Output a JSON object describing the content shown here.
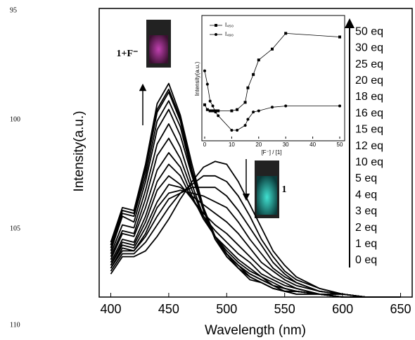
{
  "line_numbers": [
    "95",
    "100",
    "105",
    "110"
  ],
  "chart_data": [
    {
      "type": "line",
      "x_label": "Wavelength (nm)",
      "y_label": "Intensity(a.u.)",
      "x": [
        400,
        410,
        420,
        430,
        440,
        450,
        460,
        470,
        480,
        490,
        500,
        510,
        520,
        530,
        540,
        550,
        560,
        580,
        600,
        620,
        650
      ],
      "xlim": [
        390,
        660
      ],
      "xticks": [
        400,
        450,
        500,
        550,
        600,
        650
      ],
      "ylim": [
        0,
        100
      ],
      "annotations": [
        "1+F⁻",
        "1"
      ],
      "series": [
        {
          "name": "0 eq",
          "color": "#000000",
          "values": [
            8,
            14,
            14,
            16,
            21,
            27,
            34,
            40,
            45,
            47,
            46,
            40,
            32,
            24,
            16,
            11,
            7,
            3,
            1,
            0,
            0
          ]
        },
        {
          "name": "1 eq",
          "color": "#000000",
          "values": [
            9,
            15,
            15,
            19,
            25,
            31,
            36,
            39,
            42,
            42,
            40,
            35,
            28,
            20,
            14,
            9,
            6,
            3,
            1,
            0,
            0
          ]
        },
        {
          "name": "2 eq",
          "color": "#000000",
          "values": [
            10,
            16,
            16,
            21,
            28,
            34,
            36,
            38,
            38,
            38,
            35,
            30,
            24,
            18,
            12,
            8,
            5,
            2,
            1,
            0,
            0
          ]
        },
        {
          "name": "3 eq",
          "color": "#000000",
          "values": [
            10,
            17,
            16,
            22,
            31,
            36,
            37,
            36,
            35,
            33,
            31,
            26,
            20,
            15,
            10,
            7,
            5,
            2,
            1,
            0,
            0
          ]
        },
        {
          "name": "4 eq",
          "color": "#000000",
          "values": [
            11,
            18,
            17,
            24,
            33,
            39,
            38,
            35,
            32,
            29,
            26,
            22,
            17,
            12,
            9,
            6,
            4,
            2,
            1,
            0,
            0
          ]
        },
        {
          "name": "5 eq",
          "color": "#000000",
          "values": [
            11,
            19,
            18,
            26,
            37,
            42,
            39,
            34,
            29,
            25,
            22,
            18,
            14,
            10,
            7,
            5,
            3,
            1,
            1,
            0,
            0
          ]
        },
        {
          "name": "10 eq",
          "color": "#000000",
          "values": [
            12,
            20,
            19,
            28,
            40,
            46,
            42,
            34,
            28,
            23,
            19,
            15,
            12,
            8,
            6,
            4,
            3,
            1,
            1,
            0,
            0
          ]
        },
        {
          "name": "12 eq",
          "color": "#000000",
          "values": [
            13,
            22,
            21,
            31,
            44,
            50,
            45,
            35,
            27,
            21,
            17,
            13,
            10,
            7,
            5,
            3,
            2,
            1,
            1,
            0,
            0
          ]
        },
        {
          "name": "15 eq",
          "color": "#000000",
          "values": [
            14,
            23,
            22,
            34,
            49,
            55,
            48,
            37,
            28,
            21,
            16,
            12,
            9,
            7,
            4,
            3,
            2,
            1,
            0,
            0,
            0
          ]
        },
        {
          "name": "16 eq",
          "color": "#000000",
          "values": [
            15,
            25,
            24,
            37,
            53,
            60,
            52,
            39,
            28,
            21,
            15,
            11,
            8,
            6,
            4,
            3,
            2,
            1,
            0,
            0,
            0
          ]
        },
        {
          "name": "18 eq",
          "color": "#000000",
          "values": [
            16,
            28,
            26,
            40,
            58,
            65,
            56,
            42,
            30,
            21,
            15,
            11,
            8,
            6,
            4,
            2,
            2,
            1,
            0,
            0,
            0
          ]
        },
        {
          "name": "20 eq",
          "color": "#000000",
          "values": [
            17,
            29,
            28,
            42,
            61,
            68,
            59,
            43,
            30,
            21,
            15,
            11,
            7,
            5,
            3,
            2,
            2,
            1,
            0,
            0,
            0
          ]
        },
        {
          "name": "25 eq",
          "color": "#000000",
          "values": [
            18,
            30,
            29,
            44,
            64,
            71,
            61,
            44,
            31,
            21,
            15,
            10,
            7,
            5,
            3,
            2,
            2,
            1,
            0,
            0,
            0
          ]
        },
        {
          "name": "30 eq",
          "color": "#000000",
          "values": [
            18,
            30,
            29,
            45,
            65,
            72,
            62,
            44,
            30,
            20,
            14,
            10,
            6,
            5,
            3,
            2,
            1,
            1,
            0,
            0,
            0
          ]
        },
        {
          "name": "50 eq",
          "color": "#000000",
          "values": [
            19,
            31,
            30,
            46,
            67,
            74,
            63,
            46,
            31,
            21,
            14,
            10,
            7,
            5,
            3,
            2,
            1,
            1,
            0,
            0,
            0
          ]
        }
      ]
    },
    {
      "type": "scatter",
      "x_label": "[F⁻] / [1]",
      "y_label": "Intensity(a.u.)",
      "x": [
        0,
        1,
        2,
        3,
        4,
        5,
        10,
        12,
        15,
        16,
        18,
        20,
        25,
        30,
        50
      ],
      "xlim": [
        0,
        50
      ],
      "xticks": [
        0,
        10,
        20,
        30,
        40,
        50
      ],
      "ylim": [
        0,
        100
      ],
      "series": [
        {
          "name": "I₄₅₀",
          "color": "#000000",
          "marker": "square",
          "values": [
            28,
            24,
            23,
            23,
            23,
            23,
            23,
            24,
            30,
            42,
            53,
            65,
            74,
            87,
            84
          ]
        },
        {
          "name": "I₄₉₀",
          "color": "#000000",
          "marker": "circle",
          "values": [
            56,
            45,
            31,
            27,
            22,
            19,
            7,
            7,
            11,
            16,
            22,
            23,
            26,
            27,
            27
          ]
        }
      ]
    }
  ]
}
